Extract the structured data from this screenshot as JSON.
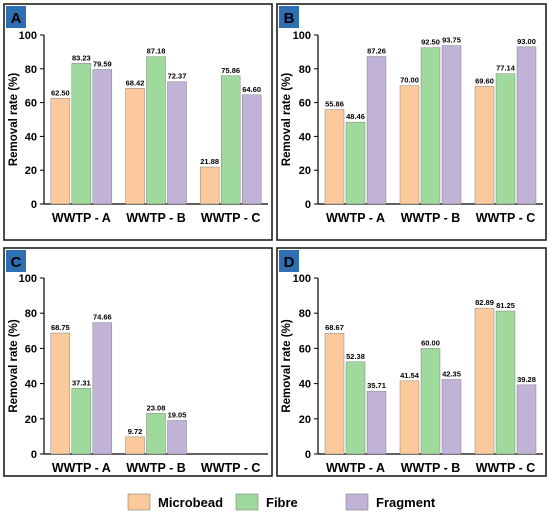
{
  "colors": {
    "microbead": "#fbc99c",
    "fibre": "#9fd99c",
    "fragment": "#c1b2d7",
    "panel_border": "#1f1f1f",
    "label_box": "#2e6fb4"
  },
  "legend": [
    {
      "key": "microbead",
      "label": "Microbead"
    },
    {
      "key": "fibre",
      "label": "Fibre"
    },
    {
      "key": "fragment",
      "label": "Fragment"
    }
  ],
  "chart_data": [
    {
      "panel": "A",
      "type": "bar",
      "ylabel": "Removal rate (%)",
      "ylim": [
        0,
        100
      ],
      "yticks": [
        0,
        20,
        40,
        60,
        80,
        100
      ],
      "categories": [
        "WWTP - A",
        "WWTP - B",
        "WWTP - C"
      ],
      "series": [
        {
          "key": "microbead",
          "values": [
            62.5,
            68.42,
            21.88
          ],
          "labels": [
            "62.50",
            "68.42",
            "21.88"
          ]
        },
        {
          "key": "fibre",
          "values": [
            83.23,
            87.18,
            75.86
          ],
          "labels": [
            "83.23",
            "87.18",
            "75.86"
          ]
        },
        {
          "key": "fragment",
          "values": [
            79.59,
            72.37,
            64.6
          ],
          "labels": [
            "79.59",
            "72.37",
            "64.60"
          ]
        }
      ]
    },
    {
      "panel": "B",
      "type": "bar",
      "ylabel": "Removal rate (%)",
      "ylim": [
        0,
        100
      ],
      "yticks": [
        0,
        20,
        40,
        60,
        80,
        100
      ],
      "categories": [
        "WWTP - A",
        "WWTP - B",
        "WWTP - C"
      ],
      "series": [
        {
          "key": "microbead",
          "values": [
            55.86,
            70.0,
            69.6
          ],
          "labels": [
            "55.86",
            "70.00",
            "69.60"
          ]
        },
        {
          "key": "fibre",
          "values": [
            48.46,
            92.5,
            77.14
          ],
          "labels": [
            "48.46",
            "92.50",
            "77.14"
          ]
        },
        {
          "key": "fragment",
          "values": [
            87.26,
            93.75,
            93.0
          ],
          "labels": [
            "87.26",
            "93.75",
            "93.00"
          ]
        }
      ]
    },
    {
      "panel": "C",
      "type": "bar",
      "ylabel": "Removal rate (%)",
      "ylim": [
        0,
        100
      ],
      "yticks": [
        0,
        20,
        40,
        60,
        80,
        100
      ],
      "categories": [
        "WWTP - A",
        "WWTP - B",
        "WWTP - C"
      ],
      "series": [
        {
          "key": "microbead",
          "values": [
            68.75,
            9.72,
            null
          ],
          "labels": [
            "68.75",
            "9.72",
            ""
          ]
        },
        {
          "key": "fibre",
          "values": [
            37.31,
            23.08,
            null
          ],
          "labels": [
            "37.31",
            "23.08",
            ""
          ]
        },
        {
          "key": "fragment",
          "values": [
            74.66,
            19.05,
            null
          ],
          "labels": [
            "74.66",
            "19.05",
            ""
          ]
        }
      ]
    },
    {
      "panel": "D",
      "type": "bar",
      "ylabel": "Removal rate (%)",
      "ylim": [
        0,
        100
      ],
      "yticks": [
        0,
        20,
        40,
        60,
        80,
        100
      ],
      "categories": [
        "WWTP - A",
        "WWTP - B",
        "WWTP - C"
      ],
      "series": [
        {
          "key": "microbead",
          "values": [
            68.67,
            41.54,
            82.89
          ],
          "labels": [
            "68.67",
            "41.54",
            "82.89"
          ]
        },
        {
          "key": "fibre",
          "values": [
            52.38,
            60.0,
            81.25
          ],
          "labels": [
            "52.38",
            "60.00",
            "81.25"
          ]
        },
        {
          "key": "fragment",
          "values": [
            35.71,
            42.35,
            39.28
          ],
          "labels": [
            "35.71",
            "42.35",
            "39.28"
          ]
        }
      ]
    }
  ]
}
